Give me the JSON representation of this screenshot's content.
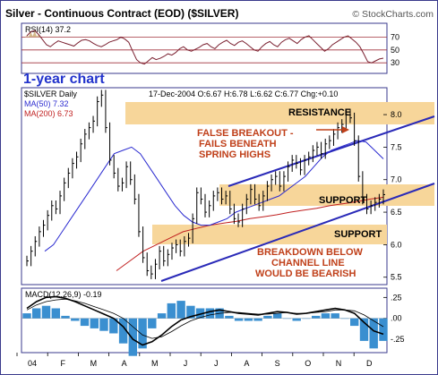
{
  "header": {
    "title": "Silver - Continuous Contract (EOD) ($SILVER)",
    "watermark": "© StockCharts.com"
  },
  "colors": {
    "frame": "#3a3a8c",
    "price": "#000000",
    "ma50": "#2b2bd0",
    "ma200": "#c02020",
    "annotation": "#c0401a",
    "channel": "#2a2ab8",
    "zone": "#f7d69a",
    "rsi": "#7a2030",
    "macd_hist": "#3a8fd0",
    "label_blue": "#2233cc"
  },
  "rsi_panel": {
    "label": "RSI(14) 37.2",
    "ticks": [
      "70",
      "50",
      "30"
    ],
    "levels": [
      70,
      50,
      30
    ],
    "values": [
      72,
      78,
      80,
      74,
      66,
      58,
      55,
      60,
      64,
      62,
      60,
      58,
      56,
      61,
      65,
      66,
      64,
      60,
      57,
      55,
      58,
      62,
      64,
      66,
      70,
      67,
      62,
      48,
      35,
      30,
      28,
      33,
      38,
      35,
      37,
      40,
      44,
      42,
      46,
      52,
      55,
      50,
      48,
      51,
      54,
      58,
      60,
      55,
      52,
      58,
      62,
      65,
      60,
      57,
      62,
      64,
      60,
      55,
      50,
      48,
      55,
      60,
      63,
      58,
      55,
      62,
      66,
      68,
      64,
      60,
      66,
      70,
      72,
      66,
      60,
      54,
      48,
      52,
      58,
      62,
      66,
      70,
      72,
      67,
      62,
      55,
      44,
      32,
      30,
      33,
      36,
      37.2
    ]
  },
  "chart_note": "1-year chart",
  "price_panel": {
    "label": "$SILVER Daily",
    "info": "17-Dec-2004  O:6.67  H:6.78  L:6.62  C:6.77  Chg:+0.10",
    "ma50_label": "MA(50) 7.32",
    "ma200_label": "MA(200) 6.73",
    "yticks": [
      "8.0",
      "7.5",
      "7.0",
      "6.5",
      "6.0",
      "5.5"
    ],
    "ytick_values": [
      8.0,
      7.5,
      7.0,
      6.5,
      6.0,
      5.5
    ],
    "annotations": {
      "resistance": "RESISTANCE",
      "false_breakout_1": "FALSE BREAKOUT -",
      "false_breakout_2": "FAILS BENEATH",
      "false_breakout_3": "SPRING HIGHS",
      "support_1": "SUPPORT",
      "support_2": "SUPPORT",
      "breakdown_1": "BREAKDOWN BELOW",
      "breakdown_2": "CHANNEL LINE",
      "breakdown_3": "WOULD BE BEARISH"
    }
  },
  "macd_panel": {
    "label": "MACD(12,26,9) -0.19",
    "yticks": [
      ".25",
      ".00",
      "-.25"
    ],
    "ytick_values": [
      0.25,
      0.0,
      -0.25
    ]
  },
  "x_axis": {
    "labels": [
      "04",
      "F",
      "M",
      "A",
      "M",
      "J",
      "J",
      "A",
      "S",
      "O",
      "N",
      "D"
    ]
  },
  "chart_data": {
    "type": "line",
    "title": "Silver - Continuous Contract (EOD) ($SILVER)",
    "ylim": [
      5.4,
      8.4
    ],
    "price": [
      5.75,
      5.9,
      6.05,
      6.2,
      6.3,
      6.45,
      6.6,
      6.55,
      6.75,
      6.95,
      7.1,
      7.25,
      7.35,
      7.55,
      7.7,
      7.8,
      7.9,
      8.2,
      8.3,
      7.8,
      7.3,
      7.1,
      6.9,
      6.95,
      7.2,
      7.0,
      6.7,
      6.2,
      5.8,
      5.6,
      5.55,
      5.7,
      5.9,
      5.75,
      5.85,
      5.95,
      6.0,
      5.9,
      6.05,
      6.1,
      6.4,
      6.8,
      6.7,
      6.5,
      6.6,
      6.75,
      6.8,
      6.7,
      6.75,
      6.55,
      6.4,
      6.35,
      6.55,
      6.7,
      6.85,
      6.7,
      6.6,
      6.75,
      6.9,
      7.0,
      7.05,
      6.9,
      7.05,
      7.2,
      7.3,
      7.25,
      7.15,
      7.3,
      7.35,
      7.45,
      7.5,
      7.4,
      7.55,
      7.6,
      7.7,
      7.8,
      7.85,
      8.0,
      7.95,
      7.6,
      7.05,
      6.7,
      6.55,
      6.6,
      6.65,
      6.7,
      6.77
    ],
    "ma50": [
      5.9,
      6.0,
      6.2,
      6.4,
      6.6,
      6.8,
      7.0,
      7.2,
      7.4,
      7.45,
      7.5,
      7.4,
      7.2,
      7.0,
      6.8,
      6.6,
      6.45,
      6.35,
      6.3,
      6.3,
      6.35,
      6.4,
      6.5,
      6.55,
      6.6,
      6.65,
      6.7,
      6.75,
      6.85,
      6.95,
      7.05,
      7.2,
      7.35,
      7.45,
      7.5,
      7.55,
      7.6,
      7.58,
      7.45,
      7.32
    ],
    "ma200": [
      5.6,
      5.75,
      5.9,
      6.0,
      6.1,
      6.2,
      6.25,
      6.3,
      6.33,
      6.36,
      6.4,
      6.43,
      6.46,
      6.5,
      6.53,
      6.56,
      6.6,
      6.63,
      6.66,
      6.7,
      6.73
    ],
    "macd": [
      0.12,
      0.2,
      0.25,
      0.26,
      0.24,
      0.2,
      0.15,
      0.1,
      0.05,
      0.0,
      -0.1,
      -0.25,
      -0.32,
      -0.28,
      -0.2,
      -0.1,
      -0.02,
      0.02,
      0.05,
      0.08,
      0.1,
      0.08,
      0.06,
      0.05,
      0.04,
      0.06,
      0.08,
      0.07,
      0.05,
      0.06,
      0.08,
      0.1,
      0.12,
      0.1,
      0.06,
      -0.05,
      -0.15,
      -0.19
    ],
    "signal": [
      0.1,
      0.16,
      0.2,
      0.22,
      0.23,
      0.21,
      0.18,
      0.14,
      0.1,
      0.06,
      0.0,
      -0.1,
      -0.2,
      -0.24,
      -0.22,
      -0.16,
      -0.09,
      -0.03,
      0.01,
      0.04,
      0.06,
      0.07,
      0.07,
      0.06,
      0.05,
      0.05,
      0.06,
      0.07,
      0.06,
      0.06,
      0.07,
      0.08,
      0.1,
      0.1,
      0.09,
      0.04,
      -0.03,
      -0.1
    ]
  }
}
